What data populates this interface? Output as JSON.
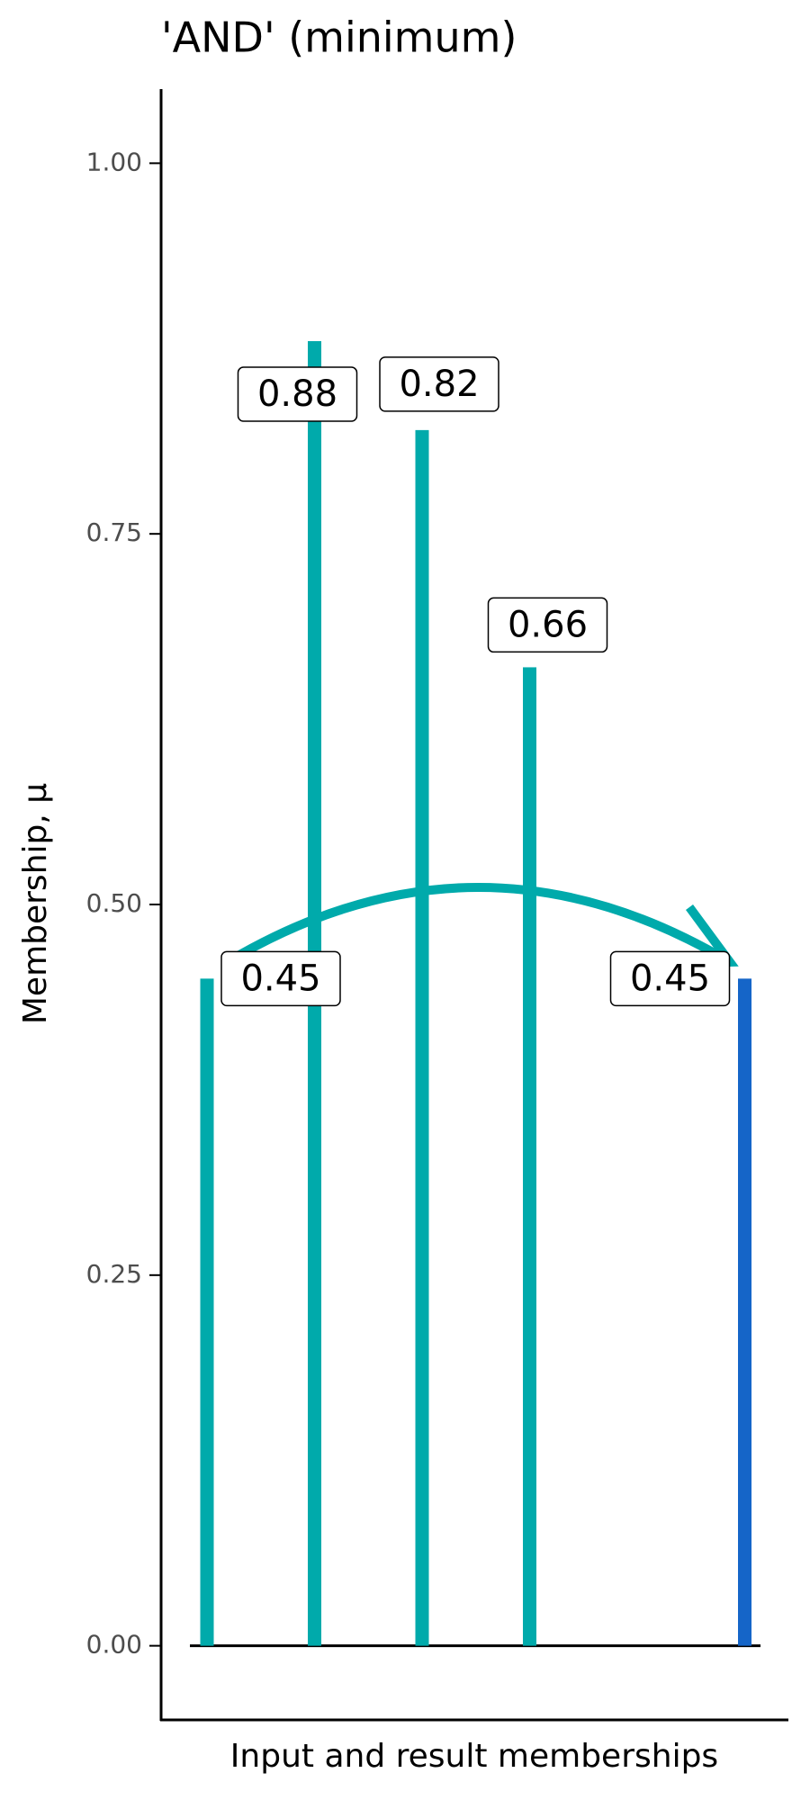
{
  "chart_data": {
    "type": "lollipop",
    "title": "'AND' (minimum)",
    "x_label": "Input and result memberships",
    "y_label": "Membership, μ",
    "categories": [
      null,
      null,
      null,
      null,
      null,
      null
    ],
    "series": [
      {
        "color": "#00aaab",
        "values": [
          0.45,
          0.88,
          0.82,
          0.66,
          null,
          null
        ]
      },
      {
        "color": "#1565c8",
        "values": [
          null,
          null,
          null,
          null,
          null,
          0.45
        ]
      }
    ],
    "ylim": [
      -0.05,
      1.05
    ],
    "yticks": [
      {
        "value": 0,
        "label": "0.00"
      },
      {
        "value": 0.25,
        "label": "0.25"
      },
      {
        "value": 0.5,
        "label": "0.50"
      },
      {
        "value": 0.75,
        "label": "0.75"
      },
      {
        "value": 1,
        "label": "1.00"
      }
    ],
    "grid": false
  }
}
